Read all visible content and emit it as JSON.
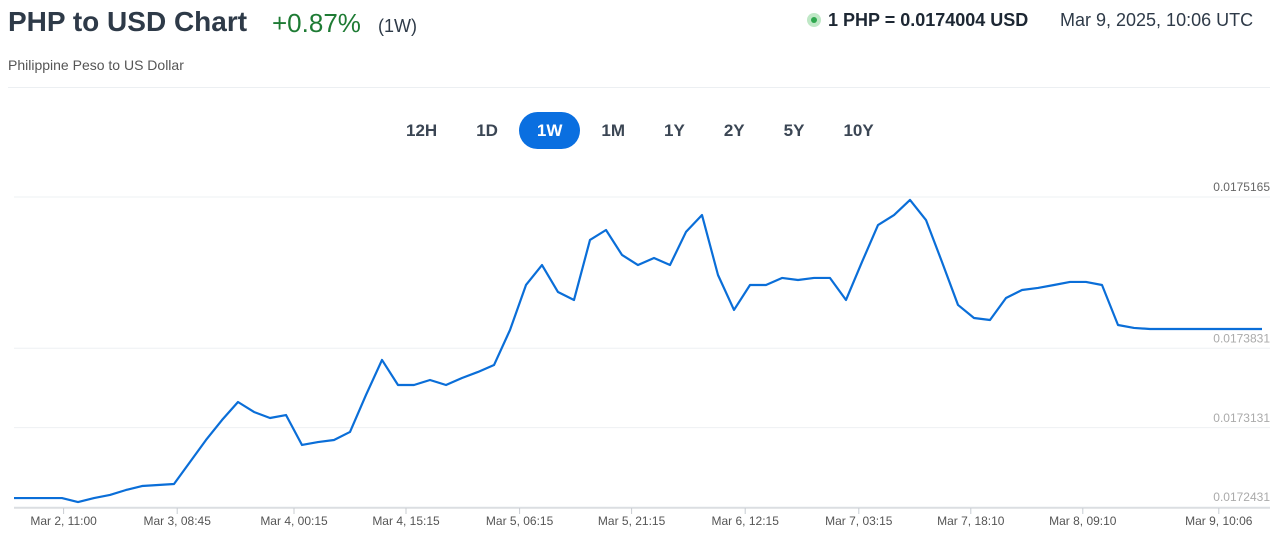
{
  "header": {
    "title": "PHP to USD Chart",
    "change": "+0.87%",
    "period": "(1W)",
    "subtitle": "Philippine Peso to US Dollar",
    "rate": "1 PHP = 0.0174004 USD",
    "timestamp": "Mar 9, 2025, 10:06 UTC"
  },
  "ranges": [
    "12H",
    "1D",
    "1W",
    "1M",
    "1Y",
    "2Y",
    "5Y",
    "10Y"
  ],
  "active_range": 2,
  "chart_data": {
    "type": "line",
    "color": "#0a6ed8",
    "grid": true,
    "xlim": [
      0,
      78
    ],
    "xticks": [
      {
        "value": 3.1,
        "label": "Mar 2, 11:00"
      },
      {
        "value": 10.2,
        "label": "Mar 3, 08:45"
      },
      {
        "value": 17.5,
        "label": "Mar 4, 00:15"
      },
      {
        "value": 24.5,
        "label": "Mar 4, 15:15"
      },
      {
        "value": 31.6,
        "label": "Mar 5, 06:15"
      },
      {
        "value": 38.6,
        "label": "Mar 5, 21:15"
      },
      {
        "value": 45.7,
        "label": "Mar 6, 12:15"
      },
      {
        "value": 52.8,
        "label": "Mar 7, 03:15"
      },
      {
        "value": 59.8,
        "label": "Mar 7, 18:10"
      },
      {
        "value": 66.8,
        "label": "Mar 8, 09:10"
      },
      {
        "value": 75.3,
        "label": "Mar 9, 10:06"
      }
    ],
    "ylim": [
      0.0172431,
      0.0175165
    ],
    "yticks": [
      0.0172431,
      0.0173131,
      0.0173831,
      0.0175165
    ],
    "x": [
      0,
      1,
      2,
      3,
      4,
      5,
      6,
      7,
      8,
      9,
      10,
      11,
      12,
      13,
      14,
      15,
      16,
      17,
      18,
      19,
      20,
      21,
      22,
      23,
      24,
      25,
      26,
      27,
      28,
      29,
      30,
      31,
      32,
      33,
      34,
      35,
      36,
      37,
      38,
      39,
      40,
      41,
      42,
      43,
      44,
      45,
      46,
      47,
      48,
      49,
      50,
      51,
      52,
      53,
      54,
      55,
      56,
      57,
      58,
      59,
      60,
      61,
      62,
      63,
      64,
      65,
      66,
      67,
      68,
      69,
      70,
      71,
      72,
      73,
      74,
      75,
      76,
      77,
      78
    ],
    "values": [
      0.017251,
      0.017251,
      0.017251,
      0.017251,
      0.0172475,
      0.017251,
      0.0172537,
      0.0172581,
      0.0172616,
      0.0172625,
      0.0172634,
      0.0172828,
      0.0173022,
      0.0173198,
      0.0173357,
      0.0173269,
      0.0173216,
      0.0173242,
      0.0172978,
      0.0173004,
      0.0173022,
      0.0173093,
      0.0173419,
      0.0173728,
      0.0173507,
      0.0173507,
      0.0173551,
      0.0173507,
      0.0173569,
      0.0173622,
      0.0173683,
      0.0173992,
      0.0174389,
      0.0174565,
      0.0174327,
      0.0174257,
      0.0174786,
      0.0174874,
      0.0174654,
      0.0174565,
      0.0174627,
      0.0174565,
      0.0174857,
      0.0175006,
      0.0174477,
      0.0174169,
      0.0174389,
      0.0174389,
      0.0174451,
      0.0174433,
      0.0174451,
      0.0174451,
      0.0174257,
      0.0174592,
      0.0174918,
      0.0175006,
      0.0175139,
      0.0174962,
      0.0174592,
      0.0174213,
      0.0174098,
      0.017408,
      0.0174274,
      0.0174345,
      0.0174363,
      0.0174389,
      0.0174416,
      0.0174416,
      0.0174389,
      0.0174036,
      0.017401,
      0.0174001,
      0.0174001,
      0.0174001,
      0.0174001,
      0.0174001,
      0.0174001,
      0.0174001,
      0.0174001
    ]
  }
}
